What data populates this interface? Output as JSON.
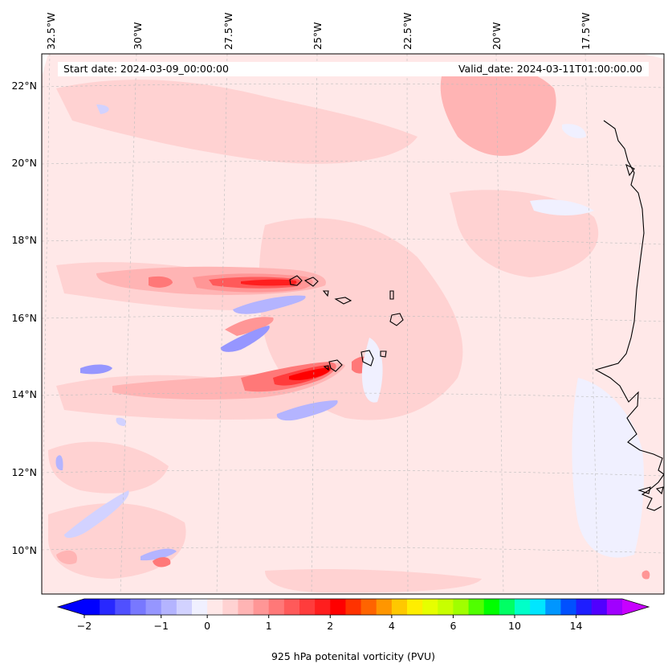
{
  "map": {
    "start_date_label": "Start date: 2024-03-09_00:00:00",
    "valid_date_label": "Valid_date: 2024-03-11T01:00:00.00",
    "lon_labels": [
      "32.5°W",
      "30°W",
      "27.5°W",
      "25°W",
      "22.5°W",
      "20°W",
      "17.5°W"
    ],
    "lat_labels": [
      "22°N",
      "20°N",
      "18°N",
      "16°N",
      "14°N",
      "12°N",
      "10°N"
    ],
    "field": "925 hPa potential vorticity",
    "colors": {
      "background_pv": "#ffe8e8",
      "coastline": "#000000",
      "gridline": "#bdbdbd"
    }
  },
  "colorbar": {
    "label": "925 hPa potenital vorticity (PVU)",
    "tick_labels": [
      "−2",
      "−1",
      "0",
      "1",
      "2",
      "4",
      "6",
      "10",
      "14"
    ],
    "colors": [
      "#0000ff",
      "#2828ff",
      "#5050ff",
      "#7878ff",
      "#9696ff",
      "#b4b4ff",
      "#d2d2ff",
      "#f0f0ff",
      "#ffe8e8",
      "#ffd2d2",
      "#ffb4b4",
      "#ff9696",
      "#ff7878",
      "#ff5a5a",
      "#ff3c3c",
      "#ff1e1e",
      "#ff0000",
      "#ff3200",
      "#ff6400",
      "#ff9600",
      "#ffc800",
      "#ffee00",
      "#e6ff00",
      "#c8ff00",
      "#a0ff00",
      "#50ff00",
      "#00ff00",
      "#00ff64",
      "#00ffc8",
      "#00e6ff",
      "#0096ff",
      "#0050ff",
      "#1e1eff",
      "#5000ff",
      "#a000ff"
    ],
    "extend_min_color": "#0000ff",
    "extend_max_color": "#c800ff"
  }
}
